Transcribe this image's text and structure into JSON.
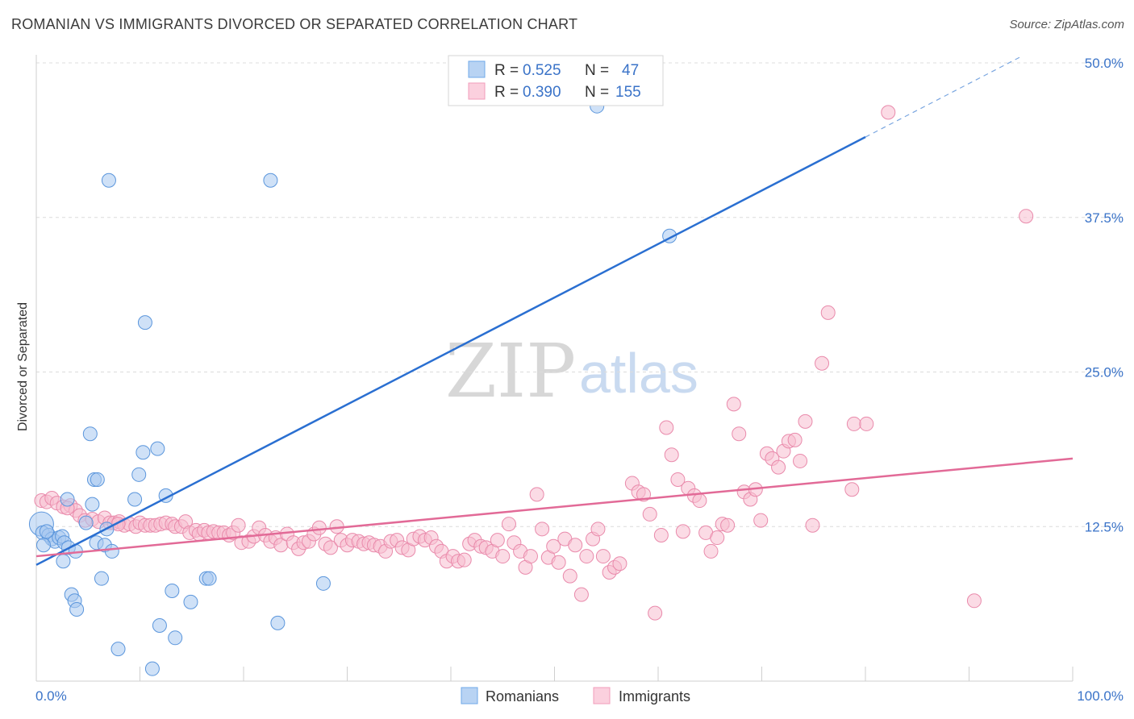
{
  "header": {
    "title": "ROMANIAN VS IMMIGRANTS DIVORCED OR SEPARATED CORRELATION CHART",
    "source": "Source: ZipAtlas.com"
  },
  "watermark": {
    "zip": "ZIP",
    "atlas": "atlas"
  },
  "legend": {
    "rows": [
      {
        "r_label": "R =",
        "r_value": "0.525",
        "n_label": "N =",
        "n_value": "47",
        "color": "#6fa8e8"
      },
      {
        "r_label": "R =",
        "r_value": "0.390",
        "n_label": "N =",
        "n_value": "155",
        "color": "#f19dbb"
      }
    ]
  },
  "bottom_legend": {
    "items": [
      "Romanians",
      "Immigrants"
    ]
  },
  "colors": {
    "romanians_fill": "#a8c8f0",
    "romanians_stroke": "#5b96dc",
    "romanians_line": "#2a6fd1",
    "immigrants_fill": "#f8bed0",
    "immigrants_stroke": "#e98aab",
    "immigrants_line": "#e26a97",
    "grid": "#dcdcdc",
    "tick_label": "#3a73c8"
  },
  "chart_data": {
    "type": "scatter",
    "title": "ROMANIAN VS IMMIGRANTS DIVORCED OR SEPARATED CORRELATION CHART",
    "xlabel": "",
    "ylabel": "Divorced or Separated",
    "xlim": [
      0,
      100
    ],
    "ylim": [
      0,
      50
    ],
    "x_tick_labels": [
      "0.0%",
      "100.0%"
    ],
    "y_ticks": [
      12.5,
      25.0,
      37.5,
      50.0
    ],
    "y_tick_labels": [
      "12.5%",
      "25.0%",
      "37.5%",
      "50.0%"
    ],
    "grid": true,
    "legend_position": "top-center",
    "series": [
      {
        "name": "Romanians",
        "points": [
          [
            0.5,
            12.7
          ],
          [
            0.6,
            12.0
          ],
          [
            1.2,
            11.8
          ],
          [
            1.5,
            11.5
          ],
          [
            1.8,
            11.3
          ],
          [
            2.2,
            11.6
          ],
          [
            2.5,
            11.7
          ],
          [
            2.7,
            11.2
          ],
          [
            2.6,
            9.7
          ],
          [
            3.1,
            10.8
          ],
          [
            3.4,
            7.0
          ],
          [
            3.7,
            6.5
          ],
          [
            3.9,
            5.8
          ],
          [
            3.8,
            10.5
          ],
          [
            3.0,
            14.7
          ],
          [
            4.8,
            12.8
          ],
          [
            5.2,
            20.0
          ],
          [
            5.4,
            14.3
          ],
          [
            5.6,
            16.3
          ],
          [
            5.9,
            16.3
          ],
          [
            5.8,
            11.2
          ],
          [
            6.3,
            8.3
          ],
          [
            6.6,
            11.0
          ],
          [
            6.8,
            12.3
          ],
          [
            7.3,
            10.5
          ],
          [
            7.0,
            40.5
          ],
          [
            7.9,
            2.6
          ],
          [
            9.5,
            14.7
          ],
          [
            9.9,
            16.7
          ],
          [
            10.3,
            18.5
          ],
          [
            10.5,
            29.0
          ],
          [
            11.2,
            1.0
          ],
          [
            11.7,
            18.8
          ],
          [
            11.9,
            4.5
          ],
          [
            12.5,
            15.0
          ],
          [
            13.1,
            7.3
          ],
          [
            13.4,
            3.5
          ],
          [
            14.9,
            6.4
          ],
          [
            16.4,
            8.3
          ],
          [
            16.7,
            8.3
          ],
          [
            22.6,
            40.5
          ],
          [
            23.3,
            4.7
          ],
          [
            27.7,
            7.9
          ],
          [
            54.1,
            46.5
          ],
          [
            61.1,
            36.0
          ],
          [
            0.7,
            11.0
          ],
          [
            1.0,
            12.1
          ]
        ],
        "trend": {
          "x": [
            0,
            80
          ],
          "y": [
            9.4,
            44.0
          ],
          "dashed_extension": {
            "x": [
              80,
              95
            ],
            "y": [
              44.0,
              50.5
            ]
          }
        }
      },
      {
        "name": "Immigrants",
        "points": [
          [
            0.5,
            14.6
          ],
          [
            1.0,
            14.5
          ],
          [
            1.5,
            14.8
          ],
          [
            2.0,
            14.4
          ],
          [
            2.6,
            14.1
          ],
          [
            3.3,
            14.2
          ],
          [
            3.8,
            13.8
          ],
          [
            4.2,
            13.4
          ],
          [
            4.7,
            13.0
          ],
          [
            5.4,
            13.1
          ],
          [
            6.0,
            12.9
          ],
          [
            6.6,
            13.2
          ],
          [
            7.1,
            12.8
          ],
          [
            7.5,
            12.8
          ],
          [
            8.0,
            12.9
          ],
          [
            8.5,
            12.6
          ],
          [
            9.0,
            12.7
          ],
          [
            9.6,
            12.5
          ],
          [
            10.0,
            12.8
          ],
          [
            10.5,
            12.6
          ],
          [
            11.0,
            12.6
          ],
          [
            11.5,
            12.6
          ],
          [
            12.0,
            12.7
          ],
          [
            12.5,
            12.8
          ],
          [
            13.1,
            12.7
          ],
          [
            13.4,
            12.5
          ],
          [
            14.0,
            12.5
          ],
          [
            14.4,
            12.9
          ],
          [
            14.8,
            12.0
          ],
          [
            15.4,
            12.2
          ],
          [
            15.7,
            11.9
          ],
          [
            16.2,
            12.2
          ],
          [
            16.6,
            12.0
          ],
          [
            17.1,
            12.1
          ],
          [
            17.6,
            12.0
          ],
          [
            18.1,
            12.0
          ],
          [
            18.6,
            11.8
          ],
          [
            19.0,
            12.0
          ],
          [
            19.5,
            12.6
          ],
          [
            19.8,
            11.2
          ],
          [
            20.5,
            11.3
          ],
          [
            21.0,
            11.7
          ],
          [
            21.5,
            12.4
          ],
          [
            22.1,
            11.8
          ],
          [
            22.6,
            11.3
          ],
          [
            23.1,
            11.6
          ],
          [
            23.6,
            11.0
          ],
          [
            24.2,
            11.9
          ],
          [
            24.8,
            11.2
          ],
          [
            25.3,
            10.7
          ],
          [
            25.8,
            11.2
          ],
          [
            26.3,
            11.3
          ],
          [
            26.8,
            11.9
          ],
          [
            27.3,
            12.4
          ],
          [
            27.9,
            11.1
          ],
          [
            28.4,
            10.8
          ],
          [
            29.0,
            12.5
          ],
          [
            29.4,
            11.4
          ],
          [
            30.0,
            11.0
          ],
          [
            30.5,
            11.4
          ],
          [
            31.1,
            11.3
          ],
          [
            31.6,
            11.1
          ],
          [
            32.1,
            11.2
          ],
          [
            32.6,
            11.0
          ],
          [
            33.2,
            10.9
          ],
          [
            33.7,
            10.5
          ],
          [
            34.2,
            11.3
          ],
          [
            34.8,
            11.4
          ],
          [
            35.3,
            10.8
          ],
          [
            35.9,
            10.6
          ],
          [
            36.4,
            11.5
          ],
          [
            37.0,
            11.7
          ],
          [
            37.5,
            11.4
          ],
          [
            38.1,
            11.6
          ],
          [
            38.6,
            10.9
          ],
          [
            39.1,
            10.5
          ],
          [
            39.6,
            9.7
          ],
          [
            40.2,
            10.1
          ],
          [
            40.7,
            9.7
          ],
          [
            41.3,
            9.8
          ],
          [
            41.8,
            11.1
          ],
          [
            42.3,
            11.4
          ],
          [
            42.9,
            10.9
          ],
          [
            43.4,
            10.8
          ],
          [
            44.0,
            10.5
          ],
          [
            44.5,
            11.4
          ],
          [
            45.0,
            10.1
          ],
          [
            45.6,
            12.7
          ],
          [
            46.1,
            11.2
          ],
          [
            46.7,
            10.5
          ],
          [
            47.2,
            9.2
          ],
          [
            47.7,
            10.1
          ],
          [
            48.3,
            15.1
          ],
          [
            48.8,
            12.3
          ],
          [
            49.4,
            10.0
          ],
          [
            49.9,
            10.9
          ],
          [
            50.4,
            9.6
          ],
          [
            51.0,
            11.5
          ],
          [
            51.5,
            8.5
          ],
          [
            52.0,
            11.0
          ],
          [
            52.6,
            7.0
          ],
          [
            53.1,
            10.1
          ],
          [
            53.7,
            11.5
          ],
          [
            54.2,
            12.3
          ],
          [
            54.7,
            10.1
          ],
          [
            55.3,
            8.8
          ],
          [
            55.8,
            9.2
          ],
          [
            56.3,
            9.5
          ],
          [
            57.5,
            16.0
          ],
          [
            58.1,
            15.3
          ],
          [
            58.6,
            15.1
          ],
          [
            59.2,
            13.5
          ],
          [
            59.7,
            5.5
          ],
          [
            60.3,
            11.8
          ],
          [
            60.8,
            20.5
          ],
          [
            61.3,
            18.3
          ],
          [
            61.9,
            16.3
          ],
          [
            62.4,
            12.1
          ],
          [
            62.9,
            15.6
          ],
          [
            63.5,
            15.0
          ],
          [
            64.0,
            14.6
          ],
          [
            64.6,
            12.0
          ],
          [
            65.1,
            10.5
          ],
          [
            65.7,
            11.6
          ],
          [
            66.2,
            12.7
          ],
          [
            66.7,
            12.6
          ],
          [
            67.3,
            22.4
          ],
          [
            67.8,
            20.0
          ],
          [
            68.3,
            15.3
          ],
          [
            68.9,
            14.7
          ],
          [
            69.4,
            15.5
          ],
          [
            69.9,
            13.0
          ],
          [
            70.5,
            18.4
          ],
          [
            71.0,
            18.0
          ],
          [
            71.6,
            17.3
          ],
          [
            72.1,
            18.6
          ],
          [
            72.6,
            19.4
          ],
          [
            73.2,
            19.5
          ],
          [
            73.7,
            17.8
          ],
          [
            74.2,
            21.0
          ],
          [
            75.8,
            25.7
          ],
          [
            76.4,
            29.8
          ],
          [
            78.7,
            15.5
          ],
          [
            78.9,
            20.8
          ],
          [
            80.1,
            20.8
          ],
          [
            82.2,
            46.0
          ],
          [
            90.5,
            6.5
          ],
          [
            95.5,
            37.6
          ],
          [
            74.9,
            12.6
          ],
          [
            7.9,
            12.7
          ],
          [
            3.0,
            14.0
          ]
        ],
        "trend": {
          "x": [
            0,
            100
          ],
          "y": [
            10.1,
            18.0
          ]
        }
      }
    ]
  }
}
